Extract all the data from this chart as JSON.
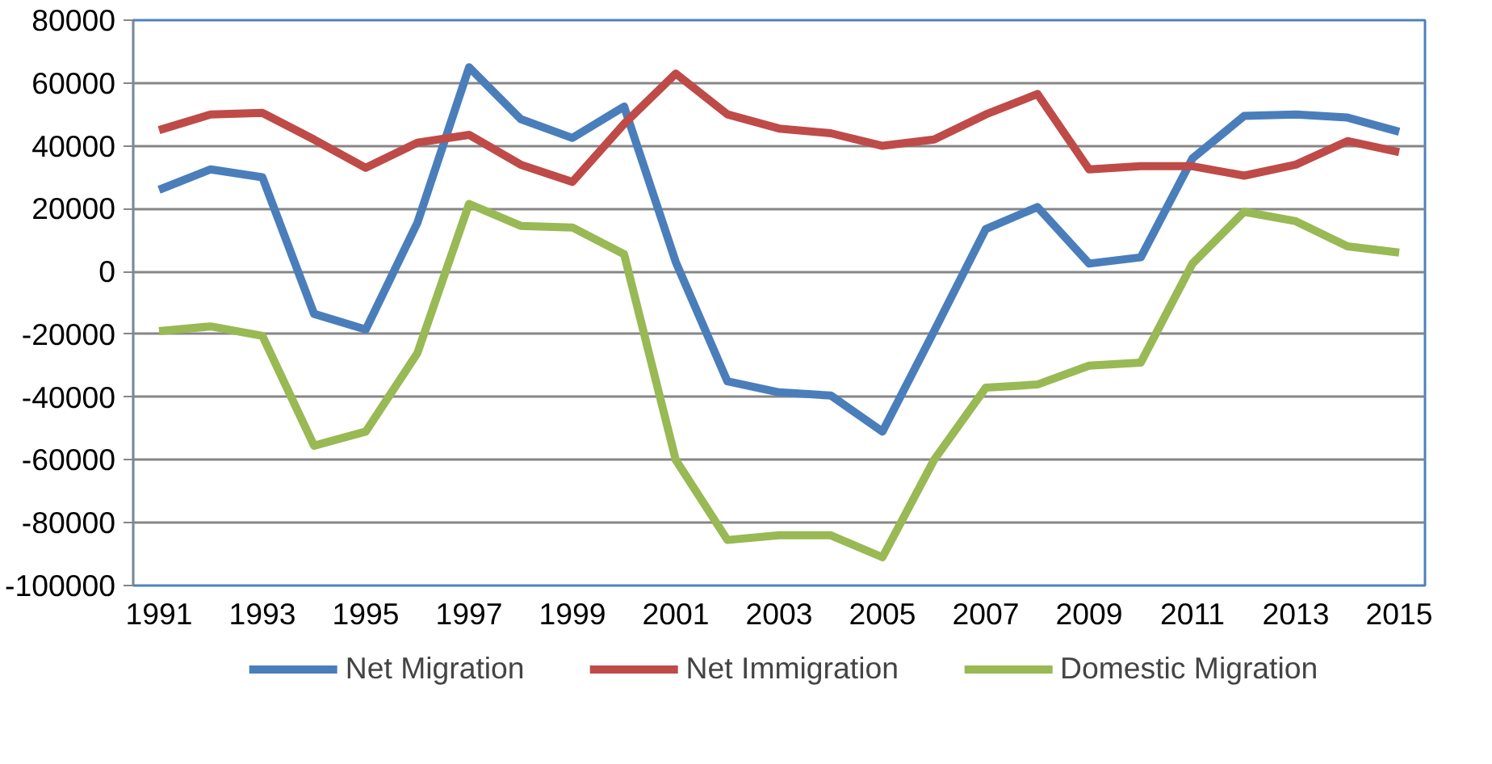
{
  "chart_data": {
    "type": "line",
    "x": [
      1991,
      1992,
      1993,
      1994,
      1995,
      1996,
      1997,
      1998,
      1999,
      2000,
      2001,
      2002,
      2003,
      2004,
      2005,
      2006,
      2007,
      2008,
      2009,
      2010,
      2011,
      2012,
      2013,
      2014,
      2015
    ],
    "xlim": [
      1990.5,
      2015.5
    ],
    "xticks": [
      1991,
      1993,
      1995,
      1997,
      1999,
      2001,
      2003,
      2005,
      2007,
      2009,
      2011,
      2013,
      2015
    ],
    "ylim": [
      -100000,
      80000
    ],
    "yticks": [
      -100000,
      -80000,
      -60000,
      -40000,
      -20000,
      0,
      20000,
      40000,
      60000,
      80000
    ],
    "grid": "y",
    "legend": "bottom",
    "marker": "none",
    "line_style": "solid",
    "series": [
      {
        "name": "Net Migration",
        "color": "#4a7ebb",
        "values": [
          26000,
          32500,
          30000,
          -13500,
          -18500,
          15500,
          65000,
          48500,
          42500,
          52500,
          3000,
          -35000,
          -38500,
          -39500,
          -51000,
          -19000,
          13500,
          20500,
          2500,
          4500,
          36000,
          49500,
          50000,
          49000,
          44500
        ]
      },
      {
        "name": "Net Immigration",
        "color": "#be4b48",
        "values": [
          45000,
          50000,
          50500,
          42000,
          33000,
          41000,
          43500,
          34000,
          28500,
          47000,
          63000,
          50000,
          45500,
          44000,
          40000,
          42000,
          50000,
          56500,
          32500,
          33500,
          33500,
          30500,
          34000,
          41500,
          38000
        ]
      },
      {
        "name": "Domestic Migration",
        "color": "#98b954",
        "values": [
          -19000,
          -17500,
          -20500,
          -55500,
          -51000,
          -26000,
          21500,
          14500,
          14000,
          5500,
          -60000,
          -85500,
          -84000,
          -84000,
          -91000,
          -60000,
          -37000,
          -36000,
          -30000,
          -29000,
          2500,
          19000,
          16000,
          8000,
          6000
        ]
      }
    ]
  }
}
